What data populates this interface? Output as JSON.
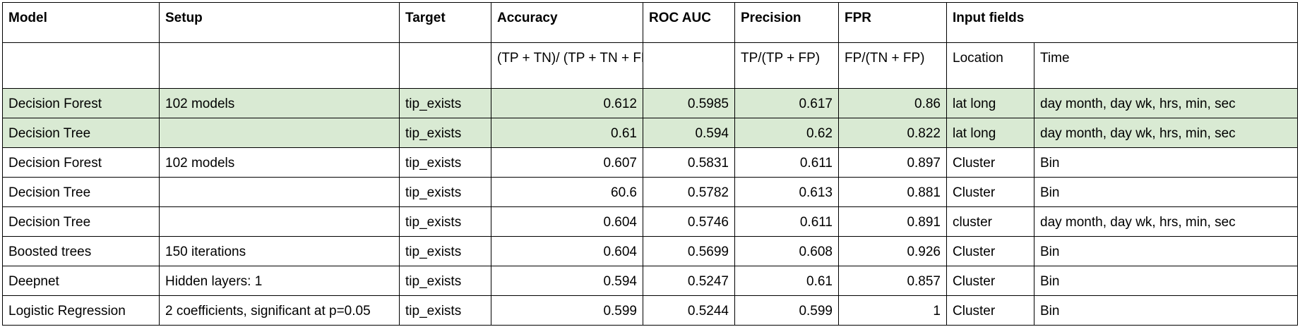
{
  "header": {
    "model": "Model",
    "setup": "Setup",
    "target": "Target",
    "accuracy": "Accuracy",
    "roc_auc": "ROC AUC",
    "precision": "Precision",
    "fpr": "FPR",
    "input_fields": "Input fields"
  },
  "formulas": {
    "accuracy": "(TP + TN)/\n(TP + TN + FP + FN)",
    "precision": "TP/(TP + FP)",
    "fpr": "FP/(TN + FP)",
    "location": "Location",
    "time": "Time"
  },
  "highlight_color": "#d9ead3",
  "rows": [
    {
      "model": "Decision Forest",
      "setup": "102 models",
      "target": "tip_exists",
      "accuracy": "0.612",
      "roc_auc": "0.5985",
      "precision": "0.617",
      "fpr": "0.86",
      "location": "lat long",
      "time": "day month, day wk, hrs, min, sec"
    },
    {
      "model": "Decision Tree",
      "setup": "",
      "target": "tip_exists",
      "accuracy": "0.61",
      "roc_auc": "0.594",
      "precision": "0.62",
      "fpr": "0.822",
      "location": "lat long",
      "time": "day month, day wk, hrs, min, sec"
    },
    {
      "model": "Decision Forest",
      "setup": "102 models",
      "target": "tip_exists",
      "accuracy": "0.607",
      "roc_auc": "0.5831",
      "precision": "0.611",
      "fpr": "0.897",
      "location": "Cluster",
      "time": "Bin"
    },
    {
      "model": "Decision Tree",
      "setup": "",
      "target": "tip_exists",
      "accuracy": "60.6",
      "roc_auc": "0.5782",
      "precision": "0.613",
      "fpr": "0.881",
      "location": "Cluster",
      "time": "Bin"
    },
    {
      "model": "Decision Tree",
      "setup": "",
      "target": "tip_exists",
      "accuracy": "0.604",
      "roc_auc": "0.5746",
      "precision": "0.611",
      "fpr": "0.891",
      "location": "cluster",
      "time": "day month, day wk, hrs, min, sec"
    },
    {
      "model": "Boosted trees",
      "setup": "150 iterations",
      "target": "tip_exists",
      "accuracy": "0.604",
      "roc_auc": "0.5699",
      "precision": "0.608",
      "fpr": "0.926",
      "location": "Cluster",
      "time": "Bin"
    },
    {
      "model": "Deepnet",
      "setup": "Hidden layers: 1",
      "target": "tip_exists",
      "accuracy": "0.594",
      "roc_auc": "0.5247",
      "precision": "0.61",
      "fpr": "0.857",
      "location": "Cluster",
      "time": "Bin"
    },
    {
      "model": "Logistic Regression",
      "setup": "2 coefficients, significant at p=0.05",
      "target": "tip_exists",
      "accuracy": "0.599",
      "roc_auc": "0.5244",
      "precision": "0.599",
      "fpr": "1",
      "location": "Cluster",
      "time": "Bin"
    }
  ]
}
